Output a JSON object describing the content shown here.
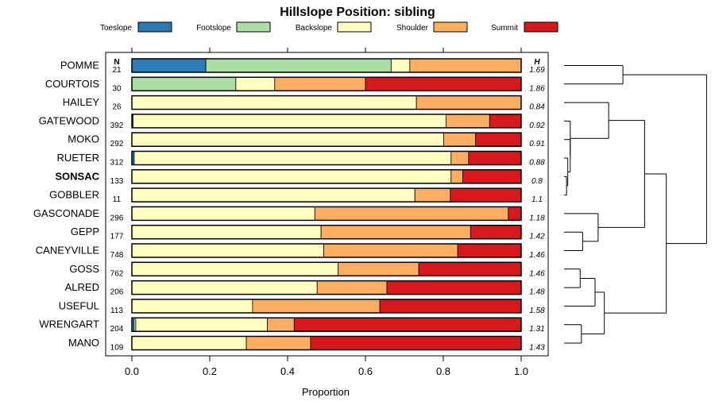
{
  "chart_data": {
    "type": "bar",
    "orientation": "horizontal-stacked",
    "title": "Hillslope Position: sibling",
    "xlabel": "Proportion",
    "xlim": [
      0,
      1
    ],
    "xticks": [
      "0.0",
      "0.2",
      "0.4",
      "0.6",
      "0.8",
      "1.0"
    ],
    "n_header": "N",
    "h_header": "H",
    "legend_position": "top",
    "series": [
      {
        "name": "Toeslope",
        "color": "#2c7bb6"
      },
      {
        "name": "Footslope",
        "color": "#abdda4"
      },
      {
        "name": "Backslope",
        "color": "#ffffbf"
      },
      {
        "name": "Shoulder",
        "color": "#fdae61"
      },
      {
        "name": "Summit",
        "color": "#d7191c"
      }
    ],
    "rows": [
      {
        "label": "POMME",
        "n": "21",
        "h": "1.69",
        "bold": false,
        "values": [
          0.19,
          0.476,
          0.048,
          0.286,
          0
        ]
      },
      {
        "label": "COURTOIS",
        "n": "30",
        "h": "1.86",
        "bold": false,
        "values": [
          0,
          0.267,
          0.1,
          0.233,
          0.4
        ]
      },
      {
        "label": "HAILEY",
        "n": "26",
        "h": "0.84",
        "bold": false,
        "values": [
          0,
          0,
          0.731,
          0.269,
          0
        ]
      },
      {
        "label": "GATEWOOD",
        "n": "392",
        "h": "0.92",
        "bold": false,
        "values": [
          0.003,
          0,
          0.804,
          0.112,
          0.081
        ]
      },
      {
        "label": "MOKO",
        "n": "292",
        "h": "0.91",
        "bold": false,
        "values": [
          0,
          0,
          0.801,
          0.082,
          0.117
        ]
      },
      {
        "label": "RUETER",
        "n": "312",
        "h": "0.88",
        "bold": false,
        "values": [
          0.006,
          0,
          0.814,
          0.045,
          0.135
        ]
      },
      {
        "label": "SONSAC",
        "n": "133",
        "h": "0.8",
        "bold": true,
        "values": [
          0,
          0,
          0.82,
          0.03,
          0.15
        ]
      },
      {
        "label": "GOBBLER",
        "n": "11",
        "h": "1.1",
        "bold": false,
        "values": [
          0,
          0,
          0.727,
          0.091,
          0.182
        ]
      },
      {
        "label": "GASCONADE",
        "n": "296",
        "h": "1.18",
        "bold": false,
        "values": [
          0,
          0,
          0.47,
          0.497,
          0.033
        ]
      },
      {
        "label": "GEPP",
        "n": "177",
        "h": "1.42",
        "bold": false,
        "values": [
          0,
          0,
          0.486,
          0.384,
          0.13
        ]
      },
      {
        "label": "CANEYVILLE",
        "n": "748",
        "h": "1.46",
        "bold": false,
        "values": [
          0,
          0,
          0.493,
          0.344,
          0.163
        ]
      },
      {
        "label": "GOSS",
        "n": "762",
        "h": "1.46",
        "bold": false,
        "values": [
          0,
          0,
          0.53,
          0.207,
          0.263
        ]
      },
      {
        "label": "ALRED",
        "n": "206",
        "h": "1.48",
        "bold": false,
        "values": [
          0,
          0,
          0.476,
          0.179,
          0.345
        ]
      },
      {
        "label": "USEFUL",
        "n": "113",
        "h": "1.58",
        "bold": false,
        "values": [
          0,
          0,
          0.31,
          0.327,
          0.363
        ]
      },
      {
        "label": "WRENGART",
        "n": "204",
        "h": "1.31",
        "bold": false,
        "values": [
          0.005,
          0.005,
          0.338,
          0.069,
          0.583
        ]
      },
      {
        "label": "MANO",
        "n": "109",
        "h": "1.43",
        "bold": false,
        "values": [
          0,
          0,
          0.294,
          0.165,
          0.541
        ]
      }
    ],
    "dendrogram": {
      "merges": [
        [
          6,
          7,
          0.04
        ],
        [
          5,
          6,
          0.06
        ],
        [
          4,
          5,
          0.1
        ],
        [
          3,
          4,
          0.1
        ],
        [
          14,
          15,
          0.28
        ],
        [
          9,
          10,
          0.3
        ],
        [
          11,
          12,
          0.26
        ],
        [
          11,
          13,
          0.5
        ],
        [
          8,
          9,
          0.55
        ],
        [
          2,
          3,
          0.72
        ],
        [
          0,
          1,
          0.95
        ],
        [
          11,
          14,
          0.65
        ],
        [
          2,
          8,
          1.3
        ],
        [
          2,
          11,
          1.65
        ],
        [
          0,
          2,
          2.3
        ]
      ]
    }
  }
}
